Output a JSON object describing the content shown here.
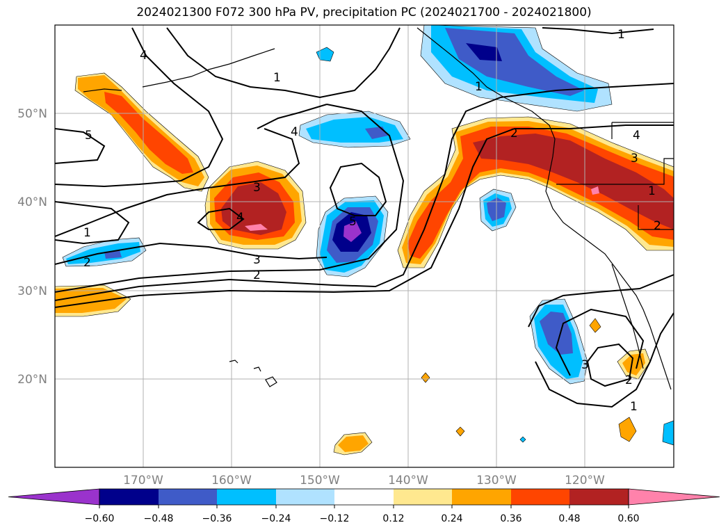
{
  "title": "2024021300 F072 300 hPa PV, precipitation PC (2024021700 - 2024021800)",
  "map": {
    "lat_labels": [
      "50°N",
      "40°N",
      "30°N",
      "20°N"
    ],
    "lon_labels": [
      "170°W",
      "160°W",
      "150°W",
      "140°W",
      "130°W",
      "120°W"
    ],
    "contour_labels": [
      "4",
      "1",
      "5",
      "4",
      "3",
      "4",
      "1",
      "2",
      "5",
      "3",
      "2",
      "1",
      "1",
      "2",
      "4",
      "3",
      "2",
      "1",
      "3",
      "2",
      "1"
    ]
  },
  "colorbar": {
    "ticks": [
      "−0.60",
      "−0.48",
      "−0.36",
      "−0.24",
      "−0.12",
      "0.12",
      "0.24",
      "0.36",
      "0.48",
      "0.60"
    ],
    "colors": [
      "#9a33cc",
      "#00008b",
      "#3f5bc8",
      "#00bfff",
      "#b0e2ff",
      "#ffffff",
      "#ffe88f",
      "#ffa500",
      "#ff4500",
      "#b22222",
      "#ff82ab"
    ]
  }
}
